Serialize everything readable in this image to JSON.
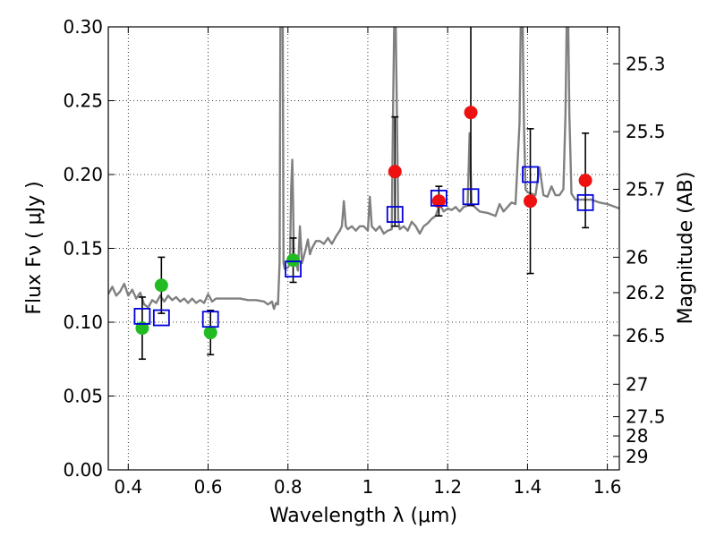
{
  "chart_data": {
    "type": "scatter",
    "xlabel": "Wavelength  λ (μm)",
    "ylabel": "Flux  Fν  ( μJy )",
    "ylabel_right": "Magnitude (AB)",
    "xlim": [
      0.35,
      1.63
    ],
    "ylim": [
      0.0,
      0.3
    ],
    "grid": true,
    "x_ticks": [
      0.4,
      0.6,
      0.8,
      1.0,
      1.2,
      1.4,
      1.6
    ],
    "x_tick_labels": [
      "0.4",
      "0.6",
      "0.8",
      "1",
      "1.2",
      "1.4",
      "1.6"
    ],
    "y_ticks": [
      0.0,
      0.05,
      0.1,
      0.15,
      0.2,
      0.25,
      0.3
    ],
    "y_tick_labels": [
      "0.00",
      "0.05",
      "0.10",
      "0.15",
      "0.20",
      "0.25",
      "0.30"
    ],
    "right_ticks": [
      {
        "label": "25.3",
        "flux": 0.275
      },
      {
        "label": "25.5",
        "flux": 0.229
      },
      {
        "label": "25.7",
        "flux": 0.19
      },
      {
        "label": "26",
        "flux": 0.144
      },
      {
        "label": "26.2",
        "flux": 0.12
      },
      {
        "label": "26.5",
        "flux": 0.091
      },
      {
        "label": "27",
        "flux": 0.058
      },
      {
        "label": "27.5",
        "flux": 0.036
      },
      {
        "label": "28",
        "flux": 0.023
      },
      {
        "label": "29",
        "flux": 0.009
      }
    ],
    "model_color": "#808080",
    "model_spectrum": [
      [
        0.35,
        0.119
      ],
      [
        0.36,
        0.124
      ],
      [
        0.37,
        0.118
      ],
      [
        0.38,
        0.121
      ],
      [
        0.39,
        0.126
      ],
      [
        0.4,
        0.118
      ],
      [
        0.41,
        0.122
      ],
      [
        0.42,
        0.116
      ],
      [
        0.43,
        0.12
      ],
      [
        0.44,
        0.112
      ],
      [
        0.45,
        0.11
      ],
      [
        0.46,
        0.115
      ],
      [
        0.47,
        0.113
      ],
      [
        0.48,
        0.118
      ],
      [
        0.49,
        0.114
      ],
      [
        0.5,
        0.118
      ],
      [
        0.51,
        0.115
      ],
      [
        0.52,
        0.117
      ],
      [
        0.53,
        0.114
      ],
      [
        0.54,
        0.116
      ],
      [
        0.55,
        0.113
      ],
      [
        0.56,
        0.116
      ],
      [
        0.57,
        0.113
      ],
      [
        0.58,
        0.115
      ],
      [
        0.59,
        0.113
      ],
      [
        0.6,
        0.119
      ],
      [
        0.61,
        0.114
      ],
      [
        0.62,
        0.116
      ],
      [
        0.65,
        0.116
      ],
      [
        0.68,
        0.116
      ],
      [
        0.7,
        0.115
      ],
      [
        0.72,
        0.115
      ],
      [
        0.74,
        0.114
      ],
      [
        0.75,
        0.112
      ],
      [
        0.76,
        0.114
      ],
      [
        0.765,
        0.109
      ],
      [
        0.77,
        0.113
      ],
      [
        0.775,
        0.112
      ],
      [
        0.779,
        0.14
      ],
      [
        0.781,
        0.3
      ],
      [
        0.787,
        0.3
      ],
      [
        0.789,
        0.14
      ],
      [
        0.792,
        0.136
      ],
      [
        0.8,
        0.137
      ],
      [
        0.805,
        0.14
      ],
      [
        0.808,
        0.19
      ],
      [
        0.811,
        0.21
      ],
      [
        0.813,
        0.18
      ],
      [
        0.815,
        0.14
      ],
      [
        0.82,
        0.14
      ],
      [
        0.825,
        0.135
      ],
      [
        0.83,
        0.165
      ],
      [
        0.835,
        0.14
      ],
      [
        0.84,
        0.145
      ],
      [
        0.845,
        0.15
      ],
      [
        0.85,
        0.156
      ],
      [
        0.855,
        0.146
      ],
      [
        0.86,
        0.15
      ],
      [
        0.87,
        0.155
      ],
      [
        0.88,
        0.155
      ],
      [
        0.89,
        0.153
      ],
      [
        0.9,
        0.157
      ],
      [
        0.91,
        0.153
      ],
      [
        0.92,
        0.158
      ],
      [
        0.93,
        0.162
      ],
      [
        0.935,
        0.165
      ],
      [
        0.94,
        0.182
      ],
      [
        0.945,
        0.165
      ],
      [
        0.95,
        0.163
      ],
      [
        0.96,
        0.165
      ],
      [
        0.97,
        0.162
      ],
      [
        0.98,
        0.165
      ],
      [
        0.99,
        0.165
      ],
      [
        1.0,
        0.162
      ],
      [
        1.005,
        0.185
      ],
      [
        1.01,
        0.165
      ],
      [
        1.02,
        0.162
      ],
      [
        1.03,
        0.165
      ],
      [
        1.04,
        0.16
      ],
      [
        1.05,
        0.162
      ],
      [
        1.06,
        0.163
      ],
      [
        1.063,
        0.24
      ],
      [
        1.066,
        0.3
      ],
      [
        1.07,
        0.3
      ],
      [
        1.073,
        0.24
      ],
      [
        1.076,
        0.17
      ],
      [
        1.08,
        0.163
      ],
      [
        1.09,
        0.165
      ],
      [
        1.1,
        0.162
      ],
      [
        1.11,
        0.168
      ],
      [
        1.12,
        0.165
      ],
      [
        1.13,
        0.16
      ],
      [
        1.14,
        0.165
      ],
      [
        1.15,
        0.167
      ],
      [
        1.16,
        0.17
      ],
      [
        1.17,
        0.172
      ],
      [
        1.18,
        0.18
      ],
      [
        1.19,
        0.175
      ],
      [
        1.2,
        0.177
      ],
      [
        1.21,
        0.176
      ],
      [
        1.22,
        0.178
      ],
      [
        1.23,
        0.175
      ],
      [
        1.24,
        0.178
      ],
      [
        1.25,
        0.179
      ],
      [
        1.255,
        0.228
      ],
      [
        1.26,
        0.18
      ],
      [
        1.28,
        0.175
      ],
      [
        1.3,
        0.174
      ],
      [
        1.32,
        0.172
      ],
      [
        1.33,
        0.18
      ],
      [
        1.34,
        0.175
      ],
      [
        1.35,
        0.178
      ],
      [
        1.36,
        0.181
      ],
      [
        1.37,
        0.18
      ],
      [
        1.38,
        0.235
      ],
      [
        1.383,
        0.3
      ],
      [
        1.388,
        0.3
      ],
      [
        1.391,
        0.235
      ],
      [
        1.395,
        0.19
      ],
      [
        1.4,
        0.188
      ],
      [
        1.42,
        0.186
      ],
      [
        1.43,
        0.205
      ],
      [
        1.44,
        0.186
      ],
      [
        1.45,
        0.185
      ],
      [
        1.46,
        0.192
      ],
      [
        1.47,
        0.186
      ],
      [
        1.48,
        0.186
      ],
      [
        1.49,
        0.19
      ],
      [
        1.495,
        0.24
      ],
      [
        1.498,
        0.3
      ],
      [
        1.502,
        0.3
      ],
      [
        1.505,
        0.24
      ],
      [
        1.51,
        0.187
      ],
      [
        1.52,
        0.183
      ],
      [
        1.54,
        0.183
      ],
      [
        1.56,
        0.183
      ],
      [
        1.58,
        0.181
      ],
      [
        1.6,
        0.18
      ],
      [
        1.62,
        0.178
      ],
      [
        1.63,
        0.177
      ]
    ],
    "series": [
      {
        "marker": "circle",
        "color": "#22bb22",
        "points": [
          {
            "x": 0.435,
            "y": 0.096,
            "yerr_low": 0.075,
            "yerr_high": 0.117
          },
          {
            "x": 0.483,
            "y": 0.125,
            "yerr_low": 0.106,
            "yerr_high": 0.144
          },
          {
            "x": 0.606,
            "y": 0.093,
            "yerr_low": 0.078,
            "yerr_high": 0.108
          },
          {
            "x": 0.813,
            "y": 0.142,
            "yerr_low": 0.127,
            "yerr_high": 0.157
          }
        ]
      },
      {
        "marker": "circle",
        "color": "#ee1111",
        "points": [
          {
            "x": 1.068,
            "y": 0.202,
            "yerr_low": 0.165,
            "yerr_high": 0.239
          },
          {
            "x": 1.178,
            "y": 0.182,
            "yerr_low": 0.172,
            "yerr_high": 0.192
          },
          {
            "x": 1.258,
            "y": 0.242,
            "yerr_low": 0.179,
            "yerr_high": 0.305
          },
          {
            "x": 1.407,
            "y": 0.182,
            "yerr_low": 0.133,
            "yerr_high": 0.231
          },
          {
            "x": 1.545,
            "y": 0.196,
            "yerr_low": 0.164,
            "yerr_high": 0.228
          }
        ]
      },
      {
        "marker": "open-square",
        "color": "#0000dd",
        "points": [
          {
            "x": 0.435,
            "y": 0.104
          },
          {
            "x": 0.483,
            "y": 0.103
          },
          {
            "x": 0.606,
            "y": 0.102
          },
          {
            "x": 0.813,
            "y": 0.136
          },
          {
            "x": 1.068,
            "y": 0.173
          },
          {
            "x": 1.178,
            "y": 0.184
          },
          {
            "x": 1.258,
            "y": 0.185
          },
          {
            "x": 1.407,
            "y": 0.2
          },
          {
            "x": 1.545,
            "y": 0.181
          }
        ]
      }
    ]
  }
}
